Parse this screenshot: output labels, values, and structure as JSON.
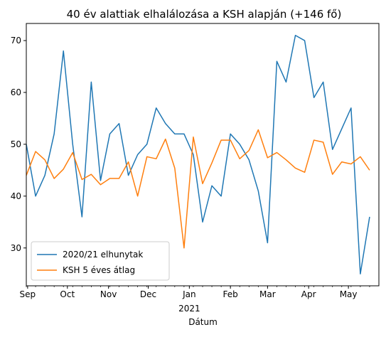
{
  "chart_data": {
    "type": "line",
    "title": "40 év alattiak elhalálozása a KSH alapján (+146 fő)",
    "xlabel": "Dátum",
    "ylabel": "",
    "x_start": "2020-08-31",
    "x_end": "2021-05-24",
    "x_step_days": 7,
    "x_ticks": [
      {
        "label": "Sep",
        "date": "2020-09-01"
      },
      {
        "label": "Oct",
        "date": "2020-10-01"
      },
      {
        "label": "Nov",
        "date": "2020-11-01"
      },
      {
        "label": "Dec",
        "date": "2020-12-01"
      },
      {
        "label": "Jan",
        "date": "2021-01-01"
      },
      {
        "label": "Feb",
        "date": "2021-02-01"
      },
      {
        "label": "Mar",
        "date": "2021-03-01"
      },
      {
        "label": "Apr",
        "date": "2021-04-01"
      },
      {
        "label": "May",
        "date": "2021-05-01"
      }
    ],
    "year_label": "2021",
    "yticks": [
      30,
      40,
      50,
      60,
      70
    ],
    "ylim": [
      22.7,
      73.3
    ],
    "series": [
      {
        "name": "2020/21 elhunytak",
        "color": "#1f77b4",
        "values": [
          50,
          40,
          44,
          52,
          68,
          50,
          36,
          62,
          43,
          52,
          54,
          44,
          48,
          50,
          57,
          54,
          52,
          52,
          48,
          35,
          42,
          40,
          52,
          50,
          47,
          41,
          31,
          66,
          62,
          71,
          70,
          59,
          62,
          49,
          53,
          57,
          25,
          36
        ]
      },
      {
        "name": "KSH 5 éves átlag",
        "color": "#ff7f0e",
        "values": [
          44,
          48.6,
          47,
          43.4,
          45.2,
          48.4,
          43.2,
          44.2,
          42.2,
          43.4,
          43.4,
          46.6,
          40,
          47.6,
          47.2,
          51,
          45.4,
          30,
          51.4,
          42.4,
          46.4,
          50.8,
          50.8,
          47.2,
          48.8,
          52.8,
          47.4,
          48.4,
          47,
          45.4,
          44.6,
          50.8,
          50.4,
          44.2,
          46.6,
          46.2,
          47.6,
          45
        ]
      }
    ],
    "legend_position": "lower-left",
    "grid": false
  }
}
